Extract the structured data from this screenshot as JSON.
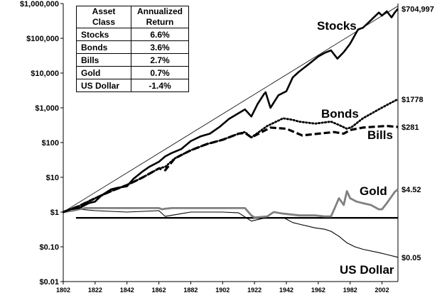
{
  "chart_data": {
    "type": "line",
    "title": "",
    "xlabel": "",
    "ylabel": "",
    "xlim": [
      1802,
      2012
    ],
    "ylim": [
      0.01,
      1000000
    ],
    "y_scale": "log",
    "grid": false,
    "x_ticks": [
      "1802",
      "1822",
      "1842",
      "1862",
      "1882",
      "1902",
      "1922",
      "1942",
      "1962",
      "1982",
      "2002"
    ],
    "x_tick_values": [
      1802,
      1822,
      1842,
      1862,
      1882,
      1902,
      1922,
      1942,
      1962,
      1982,
      2002
    ],
    "y_ticks": [
      "$1,000,000",
      "$100,000",
      "$10,000",
      "$1,000",
      "$100",
      "$10",
      "$1",
      "$0.10",
      "$0.01"
    ],
    "y_tick_values": [
      1000000,
      100000,
      10000,
      1000,
      100,
      10,
      1,
      0.1,
      0.01
    ],
    "legend_table": {
      "headers": [
        "Asset Class",
        "Annualized Return"
      ],
      "rows": [
        {
          "asset": "Stocks",
          "return": "6.6%"
        },
        {
          "asset": "Bonds",
          "return": "3.6%"
        },
        {
          "asset": "Bills",
          "return": "2.7%"
        },
        {
          "asset": "Gold",
          "return": "0.7%"
        },
        {
          "asset": "US Dollar",
          "return": "-1.4%"
        }
      ]
    },
    "series": [
      {
        "name": "Stocks",
        "end_label": "$704,997",
        "color": "#000000",
        "style": "solid-thick",
        "x": [
          1802,
          1806,
          1812,
          1818,
          1822,
          1826,
          1832,
          1836,
          1842,
          1846,
          1852,
          1856,
          1862,
          1866,
          1870,
          1876,
          1882,
          1888,
          1894,
          1900,
          1906,
          1912,
          1916,
          1920,
          1924,
          1928,
          1929,
          1932,
          1937,
          1942,
          1946,
          1950,
          1956,
          1962,
          1966,
          1970,
          1974,
          1978,
          1982,
          1987,
          1990,
          1995,
          2000,
          2002,
          2005,
          2008,
          2010,
          2012
        ],
        "y": [
          1,
          1.2,
          1.3,
          1.8,
          2.0,
          3.0,
          4.5,
          5.0,
          5.5,
          9,
          15,
          20,
          28,
          40,
          50,
          65,
          110,
          150,
          180,
          280,
          480,
          700,
          900,
          560,
          1300,
          2500,
          2800,
          1000,
          2300,
          3000,
          7500,
          11000,
          18000,
          30000,
          38000,
          45000,
          26000,
          40000,
          70000,
          180000,
          200000,
          330000,
          550000,
          450000,
          600000,
          400000,
          550000,
          704997
        ]
      },
      {
        "name": "Bonds",
        "end_label": "$1778",
        "color": "#000000",
        "style": "dotted",
        "x": [
          1802,
          1812,
          1822,
          1832,
          1842,
          1852,
          1862,
          1866,
          1872,
          1882,
          1892,
          1902,
          1912,
          1916,
          1920,
          1930,
          1940,
          1946,
          1950,
          1960,
          1970,
          1975,
          1980,
          1983,
          1990,
          2000,
          2005,
          2012
        ],
        "y": [
          1,
          1.5,
          2.5,
          4,
          6,
          10,
          18,
          20,
          35,
          60,
          90,
          120,
          180,
          200,
          140,
          300,
          500,
          450,
          400,
          350,
          400,
          320,
          250,
          280,
          500,
          900,
          1200,
          1778
        ]
      },
      {
        "name": "Bills",
        "end_label": "$281",
        "color": "#000000",
        "style": "dashed",
        "x": [
          1802,
          1812,
          1822,
          1832,
          1842,
          1852,
          1862,
          1866,
          1872,
          1882,
          1892,
          1902,
          1912,
          1916,
          1920,
          1932,
          1942,
          1952,
          1962,
          1972,
          1978,
          1982,
          1990,
          2000,
          2005,
          2012
        ],
        "y": [
          1,
          1.5,
          2.5,
          4,
          6,
          10,
          18,
          16,
          35,
          60,
          90,
          120,
          180,
          190,
          140,
          270,
          250,
          160,
          180,
          200,
          180,
          230,
          270,
          290,
          300,
          281
        ]
      },
      {
        "name": "Gold",
        "end_label": "$4.52",
        "color": "#808080",
        "style": "solid-gray",
        "x": [
          1802,
          1808,
          1812,
          1816,
          1822,
          1832,
          1842,
          1852,
          1862,
          1864,
          1866,
          1870,
          1880,
          1900,
          1916,
          1920,
          1922,
          1930,
          1934,
          1940,
          1950,
          1960,
          1966,
          1970,
          1972,
          1975,
          1978,
          1980,
          1982,
          1986,
          1990,
          1995,
          2000,
          2002,
          2005,
          2008,
          2010,
          2012
        ],
        "y": [
          1,
          1.1,
          1.2,
          1.3,
          1.3,
          1.3,
          1.3,
          1.3,
          1.3,
          1.2,
          1.25,
          1.3,
          1.3,
          1.3,
          1.3,
          0.8,
          0.7,
          0.75,
          1.0,
          0.9,
          0.8,
          0.8,
          0.75,
          0.75,
          1.2,
          2.5,
          1.6,
          4.0,
          2.5,
          2.0,
          1.8,
          1.6,
          1.2,
          1.2,
          1.8,
          2.8,
          3.8,
          4.52
        ]
      },
      {
        "name": "US Dollar",
        "end_label": "$0.05",
        "color": "#000000",
        "style": "solid-thin",
        "x": [
          1802,
          1812,
          1822,
          1842,
          1862,
          1866,
          1882,
          1902,
          1912,
          1920,
          1930,
          1940,
          1946,
          1950,
          1960,
          1966,
          1970,
          1975,
          1980,
          1985,
          1990,
          2000,
          2005,
          2012
        ],
        "y": [
          1,
          1.2,
          1.1,
          1.0,
          1.1,
          0.75,
          1.0,
          1.0,
          0.95,
          0.55,
          0.7,
          0.7,
          0.5,
          0.45,
          0.35,
          0.32,
          0.28,
          0.2,
          0.13,
          0.1,
          0.085,
          0.068,
          0.06,
          0.05
        ]
      },
      {
        "name": "",
        "color": "#000000",
        "style": "baseline",
        "x": [
          1810,
          2012
        ],
        "y": [
          0.68,
          0.68
        ]
      },
      {
        "name": "",
        "color": "#000000",
        "style": "trend-thin",
        "x": [
          1802,
          2012
        ],
        "y": [
          1.0,
          850000
        ]
      }
    ]
  }
}
